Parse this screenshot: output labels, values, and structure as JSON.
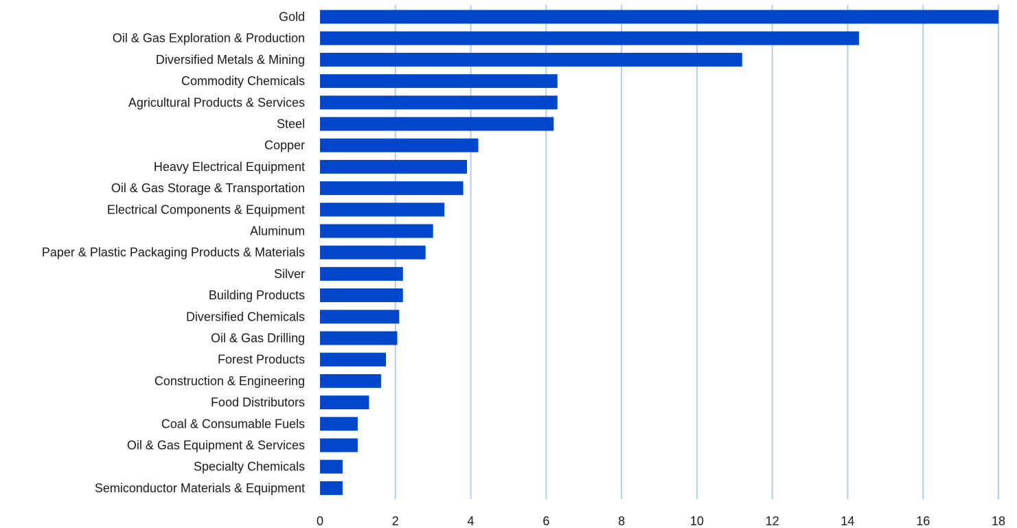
{
  "chart_data": {
    "type": "bar",
    "orientation": "horizontal",
    "title": "",
    "xlabel": "",
    "ylabel": "",
    "xlim": [
      0,
      18
    ],
    "x_ticks": [
      0,
      2,
      4,
      6,
      8,
      10,
      12,
      14,
      16,
      18
    ],
    "grid": "vertical",
    "legend": "none",
    "colors": {
      "bar": "#0047cc",
      "grid": "#b3ccf2"
    },
    "categories": [
      "Gold",
      "Oil & Gas Exploration & Production",
      "Diversified Metals & Mining",
      "Commodity Chemicals",
      "Agricultural Products & Services",
      "Steel",
      "Copper",
      "Heavy Electrical Equipment",
      "Oil & Gas Storage & Transportation",
      "Electrical Components & Equipment",
      "Aluminum",
      "Paper & Plastic Packaging Products & Materials",
      "Silver",
      "Building Products",
      "Diversified Chemicals",
      "Oil & Gas Drilling",
      "Forest Products",
      "Construction & Engineering",
      "Food Distributors",
      "Coal & Consumable Fuels",
      "Oil & Gas Equipment & Services",
      "Specialty Chemicals",
      "Semiconductor Materials & Equipment"
    ],
    "values": [
      18.0,
      14.3,
      11.2,
      6.3,
      6.3,
      6.2,
      4.2,
      3.9,
      3.8,
      3.3,
      3.0,
      2.8,
      2.2,
      2.2,
      2.1,
      2.05,
      1.75,
      1.62,
      1.3,
      1.0,
      1.0,
      0.6,
      0.6
    ]
  }
}
